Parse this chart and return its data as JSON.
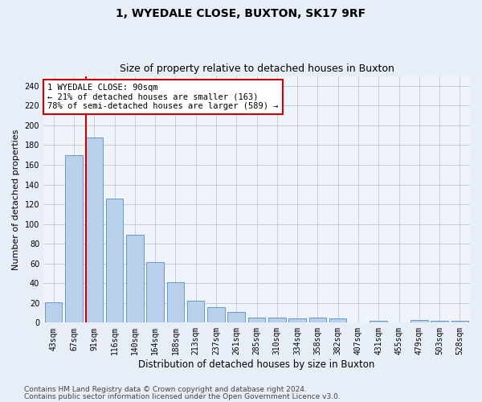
{
  "title1": "1, WYEDALE CLOSE, BUXTON, SK17 9RF",
  "title2": "Size of property relative to detached houses in Buxton",
  "xlabel": "Distribution of detached houses by size in Buxton",
  "ylabel": "Number of detached properties",
  "categories": [
    "43sqm",
    "67sqm",
    "91sqm",
    "116sqm",
    "140sqm",
    "164sqm",
    "188sqm",
    "213sqm",
    "237sqm",
    "261sqm",
    "285sqm",
    "310sqm",
    "334sqm",
    "358sqm",
    "382sqm",
    "407sqm",
    "431sqm",
    "455sqm",
    "479sqm",
    "503sqm",
    "528sqm"
  ],
  "values": [
    21,
    170,
    188,
    126,
    89,
    61,
    41,
    22,
    16,
    11,
    5,
    5,
    4,
    5,
    4,
    0,
    2,
    0,
    3,
    2,
    2
  ],
  "bar_color": "#b8d0ea",
  "bar_edge_color": "#6699cc",
  "highlight_line_color": "#cc0000",
  "annotation_text": "1 WYEDALE CLOSE: 90sqm\n← 21% of detached houses are smaller (163)\n78% of semi-detached houses are larger (589) →",
  "annotation_box_color": "#ffffff",
  "annotation_box_edge_color": "#cc0000",
  "ylim": [
    0,
    250
  ],
  "yticks": [
    0,
    20,
    40,
    60,
    80,
    100,
    120,
    140,
    160,
    180,
    200,
    220,
    240
  ],
  "footer1": "Contains HM Land Registry data © Crown copyright and database right 2024.",
  "footer2": "Contains public sector information licensed under the Open Government Licence v3.0.",
  "bg_color": "#e8eef8",
  "plot_bg_color": "#eef3fc",
  "title1_fontsize": 10,
  "title2_fontsize": 9,
  "tick_fontsize": 7,
  "ylabel_fontsize": 8,
  "xlabel_fontsize": 8.5,
  "footer_fontsize": 6.5
}
